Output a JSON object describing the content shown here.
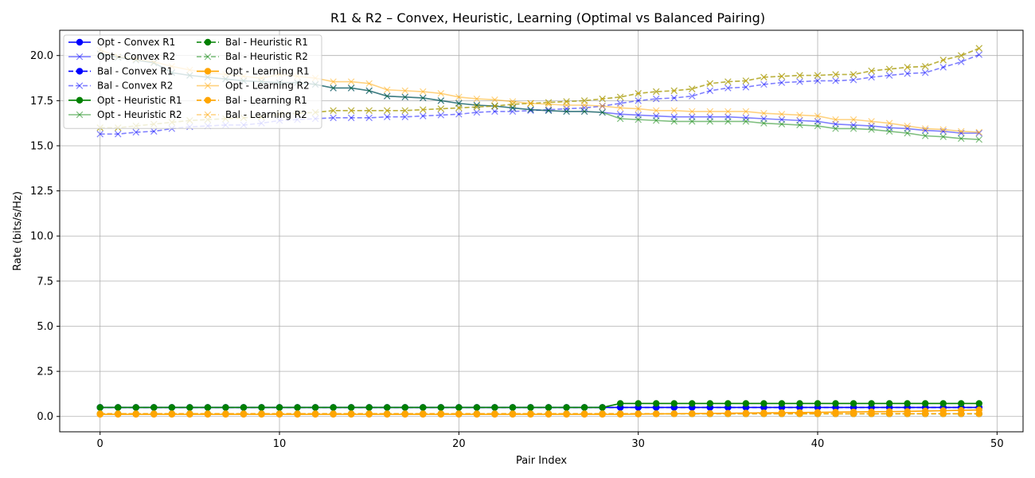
{
  "chart_data": {
    "type": "line",
    "title": "R1 & R2 – Convex, Heuristic, Learning (Optimal vs Balanced Pairing)",
    "xlabel": "Pair Index",
    "ylabel": "Rate (bits/s/Hz)",
    "xlim": [
      -2.25,
      51.45
    ],
    "ylim": [
      -0.85,
      21.4
    ],
    "xticks": [
      0,
      10,
      20,
      30,
      40,
      50
    ],
    "yticks": [
      0.0,
      2.5,
      5.0,
      7.5,
      10.0,
      12.5,
      15.0,
      17.5,
      20.0
    ],
    "grid": true,
    "legend_position": "top-left",
    "legend_columns": 2,
    "x": [
      0,
      1,
      2,
      3,
      4,
      5,
      6,
      7,
      8,
      9,
      10,
      11,
      12,
      13,
      14,
      15,
      16,
      17,
      18,
      19,
      20,
      21,
      22,
      23,
      24,
      25,
      26,
      27,
      28,
      29,
      30,
      31,
      32,
      33,
      34,
      35,
      36,
      37,
      38,
      39,
      40,
      41,
      42,
      43,
      44,
      45,
      46,
      47,
      48,
      49
    ],
    "series": [
      {
        "name": "Opt - Convex R1",
        "color": "#0000ff",
        "marker": "o",
        "dash": false,
        "alpha": 1.0,
        "values": [
          0.5,
          0.5,
          0.5,
          0.5,
          0.5,
          0.5,
          0.5,
          0.5,
          0.5,
          0.5,
          0.5,
          0.5,
          0.5,
          0.5,
          0.5,
          0.5,
          0.5,
          0.5,
          0.5,
          0.5,
          0.5,
          0.5,
          0.5,
          0.5,
          0.5,
          0.5,
          0.5,
          0.5,
          0.5,
          0.5,
          0.5,
          0.5,
          0.5,
          0.5,
          0.5,
          0.5,
          0.5,
          0.5,
          0.5,
          0.5,
          0.5,
          0.5,
          0.5,
          0.5,
          0.5,
          0.5,
          0.5,
          0.5,
          0.5,
          0.5
        ]
      },
      {
        "name": "Opt - Convex R2",
        "color": "#0000ff",
        "marker": "x",
        "dash": false,
        "alpha": 0.5,
        "values": [
          20.1,
          19.9,
          19.75,
          19.6,
          19.05,
          18.9,
          18.8,
          18.7,
          18.6,
          18.55,
          18.5,
          18.5,
          18.4,
          18.2,
          18.2,
          18.05,
          17.75,
          17.7,
          17.65,
          17.5,
          17.35,
          17.25,
          17.2,
          17.1,
          17.0,
          16.95,
          16.9,
          16.9,
          16.85,
          16.75,
          16.7,
          16.65,
          16.6,
          16.6,
          16.6,
          16.6,
          16.55,
          16.5,
          16.45,
          16.4,
          16.35,
          16.2,
          16.15,
          16.1,
          16.0,
          15.95,
          15.85,
          15.8,
          15.7,
          15.7
        ]
      },
      {
        "name": "Bal - Convex R1",
        "color": "#0000ff",
        "marker": "o",
        "dash": true,
        "alpha": 1.0,
        "values": [
          0.5,
          0.5,
          0.5,
          0.5,
          0.5,
          0.5,
          0.5,
          0.5,
          0.5,
          0.5,
          0.5,
          0.5,
          0.5,
          0.5,
          0.5,
          0.5,
          0.5,
          0.5,
          0.5,
          0.5,
          0.5,
          0.5,
          0.5,
          0.5,
          0.5,
          0.5,
          0.5,
          0.5,
          0.5,
          0.5,
          0.5,
          0.5,
          0.5,
          0.5,
          0.5,
          0.5,
          0.5,
          0.5,
          0.5,
          0.5,
          0.5,
          0.5,
          0.5,
          0.5,
          0.5,
          0.5,
          0.5,
          0.5,
          0.5,
          0.5
        ]
      },
      {
        "name": "Bal - Convex R2",
        "color": "#0000ff",
        "marker": "x",
        "dash": true,
        "alpha": 0.5,
        "values": [
          15.65,
          15.65,
          15.75,
          15.8,
          15.95,
          16.05,
          16.1,
          16.15,
          16.15,
          16.25,
          16.4,
          16.45,
          16.5,
          16.55,
          16.55,
          16.55,
          16.6,
          16.6,
          16.65,
          16.7,
          16.75,
          16.85,
          16.9,
          16.9,
          16.95,
          17.0,
          17.05,
          17.1,
          17.2,
          17.35,
          17.5,
          17.6,
          17.65,
          17.75,
          18.05,
          18.2,
          18.25,
          18.4,
          18.5,
          18.55,
          18.6,
          18.6,
          18.65,
          18.8,
          18.9,
          19.0,
          19.05,
          19.35,
          19.65,
          20.05
        ]
      },
      {
        "name": "Opt - Heuristic R1",
        "color": "#008000",
        "marker": "o",
        "dash": false,
        "alpha": 1.0,
        "values": [
          0.5,
          0.5,
          0.5,
          0.5,
          0.5,
          0.5,
          0.5,
          0.5,
          0.5,
          0.5,
          0.5,
          0.5,
          0.5,
          0.5,
          0.5,
          0.5,
          0.5,
          0.5,
          0.5,
          0.5,
          0.5,
          0.5,
          0.5,
          0.5,
          0.5,
          0.5,
          0.5,
          0.5,
          0.5,
          0.72,
          0.72,
          0.72,
          0.72,
          0.72,
          0.72,
          0.72,
          0.72,
          0.72,
          0.72,
          0.72,
          0.72,
          0.72,
          0.72,
          0.72,
          0.72,
          0.72,
          0.72,
          0.72,
          0.72,
          0.72
        ]
      },
      {
        "name": "Opt - Heuristic R2",
        "color": "#008000",
        "marker": "x",
        "dash": false,
        "alpha": 0.5,
        "values": [
          20.1,
          19.9,
          19.75,
          19.6,
          19.05,
          18.9,
          18.8,
          18.7,
          18.6,
          18.55,
          18.5,
          18.5,
          18.4,
          18.2,
          18.2,
          18.05,
          17.75,
          17.7,
          17.65,
          17.5,
          17.35,
          17.25,
          17.2,
          17.1,
          17.0,
          16.95,
          16.9,
          16.9,
          16.85,
          16.5,
          16.45,
          16.4,
          16.35,
          16.35,
          16.35,
          16.35,
          16.35,
          16.25,
          16.2,
          16.15,
          16.1,
          15.95,
          15.95,
          15.9,
          15.8,
          15.7,
          15.55,
          15.5,
          15.4,
          15.35
        ]
      },
      {
        "name": "Bal - Heuristic R1",
        "color": "#008000",
        "marker": "o",
        "dash": true,
        "alpha": 1.0,
        "values": [
          0.15,
          0.15,
          0.15,
          0.15,
          0.15,
          0.15,
          0.15,
          0.15,
          0.15,
          0.15,
          0.15,
          0.15,
          0.15,
          0.15,
          0.15,
          0.15,
          0.15,
          0.15,
          0.15,
          0.15,
          0.15,
          0.15,
          0.15,
          0.15,
          0.15,
          0.15,
          0.15,
          0.15,
          0.15,
          0.15,
          0.15,
          0.15,
          0.15,
          0.15,
          0.15,
          0.15,
          0.15,
          0.15,
          0.15,
          0.15,
          0.15,
          0.15,
          0.15,
          0.15,
          0.15,
          0.15,
          0.15,
          0.15,
          0.15,
          0.15
        ]
      },
      {
        "name": "Bal - Heuristic R2",
        "color": "#008000",
        "marker": "x",
        "dash": true,
        "alpha": 0.5,
        "values": [
          16.0,
          16.0,
          16.1,
          16.2,
          16.3,
          16.4,
          16.45,
          16.5,
          16.55,
          16.6,
          16.75,
          16.8,
          16.85,
          16.95,
          16.95,
          16.95,
          16.95,
          16.95,
          17.0,
          17.05,
          17.1,
          17.15,
          17.2,
          17.3,
          17.35,
          17.4,
          17.45,
          17.5,
          17.6,
          17.7,
          17.9,
          18.0,
          18.05,
          18.15,
          18.45,
          18.55,
          18.6,
          18.8,
          18.85,
          18.9,
          18.9,
          18.95,
          18.95,
          19.15,
          19.25,
          19.35,
          19.4,
          19.75,
          20.0,
          20.4
        ]
      },
      {
        "name": "Opt - Learning R1",
        "color": "#ffa500",
        "marker": "o",
        "dash": false,
        "alpha": 1.0,
        "values": [
          0.12,
          0.12,
          0.12,
          0.12,
          0.12,
          0.12,
          0.12,
          0.12,
          0.12,
          0.12,
          0.12,
          0.12,
          0.12,
          0.12,
          0.12,
          0.12,
          0.12,
          0.12,
          0.12,
          0.12,
          0.12,
          0.12,
          0.12,
          0.12,
          0.12,
          0.12,
          0.12,
          0.12,
          0.12,
          0.12,
          0.13,
          0.14,
          0.15,
          0.16,
          0.17,
          0.18,
          0.19,
          0.2,
          0.21,
          0.22,
          0.23,
          0.24,
          0.25,
          0.26,
          0.27,
          0.28,
          0.3,
          0.32,
          0.34,
          0.36
        ]
      },
      {
        "name": "Opt - Learning R2",
        "color": "#ffa500",
        "marker": "x",
        "dash": false,
        "alpha": 0.5,
        "values": [
          20.3,
          19.95,
          19.8,
          19.65,
          19.4,
          19.2,
          19.05,
          18.95,
          18.85,
          18.75,
          18.95,
          18.85,
          18.75,
          18.55,
          18.55,
          18.45,
          18.1,
          18.05,
          18.0,
          17.9,
          17.7,
          17.6,
          17.55,
          17.45,
          17.35,
          17.3,
          17.25,
          17.25,
          17.2,
          17.1,
          17.05,
          16.95,
          16.95,
          16.9,
          16.9,
          16.9,
          16.9,
          16.8,
          16.75,
          16.7,
          16.65,
          16.45,
          16.45,
          16.35,
          16.25,
          16.1,
          15.95,
          15.9,
          15.8,
          15.75
        ]
      },
      {
        "name": "Bal - Learning R1",
        "color": "#ffa500",
        "marker": "o",
        "dash": true,
        "alpha": 1.0,
        "values": [
          0.15,
          0.15,
          0.15,
          0.15,
          0.15,
          0.15,
          0.15,
          0.15,
          0.15,
          0.15,
          0.15,
          0.15,
          0.15,
          0.15,
          0.15,
          0.15,
          0.15,
          0.15,
          0.15,
          0.15,
          0.15,
          0.15,
          0.15,
          0.15,
          0.15,
          0.15,
          0.15,
          0.15,
          0.15,
          0.15,
          0.15,
          0.15,
          0.15,
          0.15,
          0.15,
          0.15,
          0.15,
          0.15,
          0.15,
          0.15,
          0.15,
          0.15,
          0.15,
          0.15,
          0.15,
          0.15,
          0.15,
          0.15,
          0.15,
          0.15
        ]
      },
      {
        "name": "Bal - Learning R2",
        "color": "#ffa500",
        "marker": "x",
        "dash": true,
        "alpha": 0.5,
        "values": [
          16.0,
          16.0,
          16.1,
          16.2,
          16.3,
          16.4,
          16.45,
          16.5,
          16.55,
          16.6,
          16.75,
          16.8,
          16.85,
          16.95,
          16.95,
          16.95,
          16.95,
          16.95,
          17.0,
          17.05,
          17.1,
          17.15,
          17.2,
          17.3,
          17.35,
          17.4,
          17.45,
          17.5,
          17.6,
          17.7,
          17.9,
          18.0,
          18.05,
          18.15,
          18.45,
          18.55,
          18.6,
          18.8,
          18.85,
          18.9,
          18.9,
          18.95,
          18.95,
          19.15,
          19.25,
          19.35,
          19.4,
          19.75,
          20.0,
          20.4
        ]
      }
    ]
  }
}
